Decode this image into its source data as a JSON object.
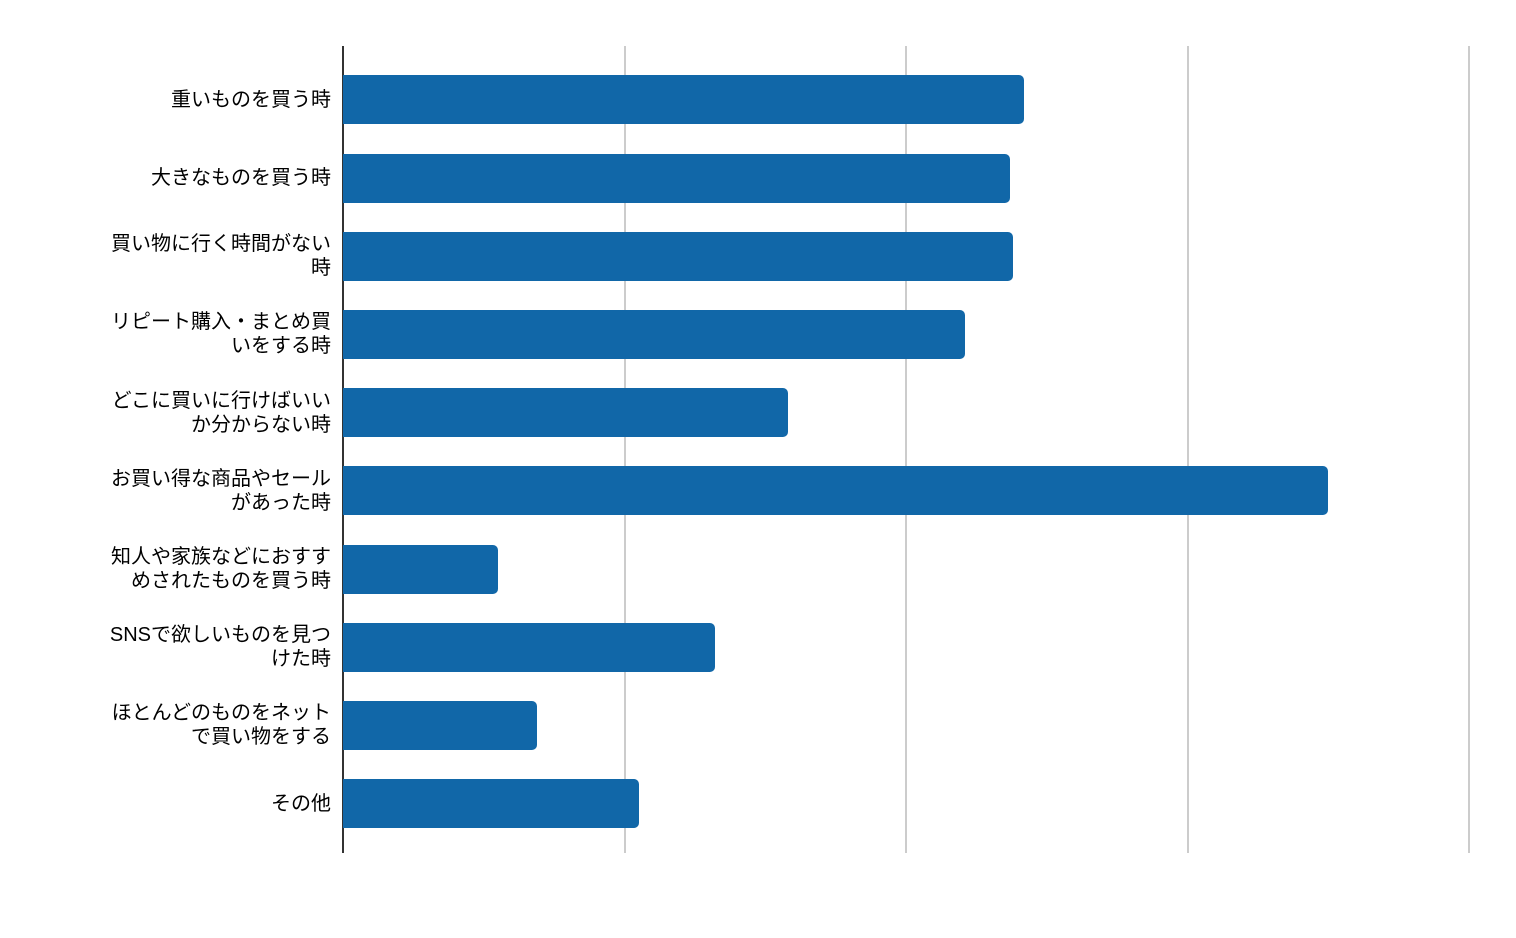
{
  "chart_data": {
    "type": "bar",
    "orientation": "horizontal",
    "title": "",
    "legend": "none",
    "x_tick_labels_visible": false,
    "grid": true,
    "xlim": [
      0,
      41.7
    ],
    "gridline_values": [
      0,
      10,
      20,
      30,
      40
    ],
    "categories": [
      "重いものを買う時",
      "大きなものを買う時",
      "買い物に行く時間がない時",
      "リピート購入・まとめ買いをする時",
      "どこに買いに行けばいいか分からない時",
      "お買い得な商品やセールがあった時",
      "知人や家族などにおすすめされたものを買う時",
      "SNSで欲しいものを見つけた時",
      "ほとんどのものをネットで買い物をする",
      "その他"
    ],
    "categories_wrapped": [
      "重いものを買う時",
      "大きなものを買う時",
      "買い物に行く時間がない\n時",
      "リピート購入・まとめ買\nいをする時",
      "どこに買いに行けばいい\nか分からない時",
      "お買い得な商品やセール\nがあった時",
      "知人や家族などにおすす\nめされたものを買う時",
      "SNSで欲しいものを見つ\nけた時",
      "ほとんどのものをネット\nで買い物をする",
      "その他"
    ],
    "values": [
      24.2,
      23.7,
      23.8,
      22.1,
      15.8,
      35.0,
      5.5,
      13.2,
      6.9,
      10.5
    ],
    "colors": {
      "bar": "#1167a8",
      "gridline": "#cccccc",
      "axis_line": "#333333",
      "label_text": "#000000",
      "background": "#ffffff"
    }
  }
}
